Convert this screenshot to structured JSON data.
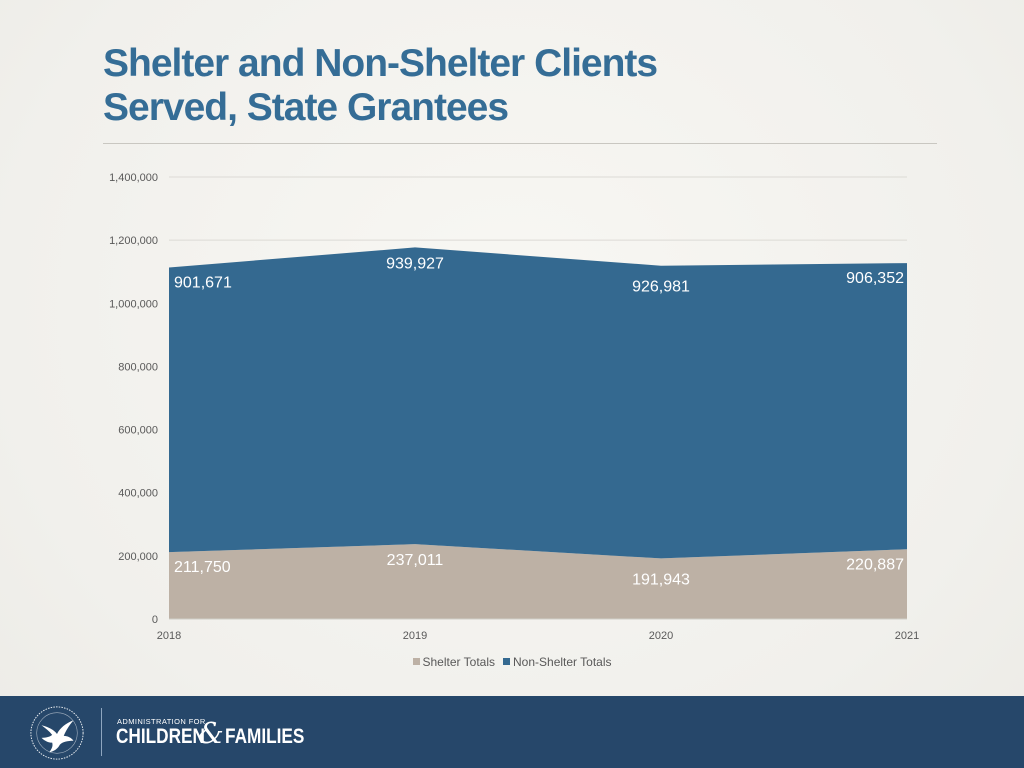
{
  "slide": {
    "title_line1": "Shelter and Non-Shelter Clients",
    "title_line2": "Served, State Grantees"
  },
  "chart_data": {
    "type": "area",
    "stacked": true,
    "title": "",
    "xlabel": "",
    "ylabel": "",
    "categories": [
      "2018",
      "2019",
      "2020",
      "2021"
    ],
    "series": [
      {
        "name": "Shelter Totals",
        "values": [
          211750,
          237011,
          191943,
          220887
        ],
        "color": "#bdb1a5",
        "labels": [
          "211,750",
          "237,011",
          "191,943",
          "220,887"
        ]
      },
      {
        "name": "Non-Shelter Totals",
        "values": [
          901671,
          939927,
          926981,
          906352
        ],
        "color": "#346990",
        "labels": [
          "901,671",
          "939,927",
          "926,981",
          "906,352"
        ]
      }
    ],
    "ylim": [
      0,
      1400000
    ],
    "yticks": [
      0,
      200000,
      400000,
      600000,
      800000,
      1000000,
      1200000,
      1400000
    ],
    "ytick_labels": [
      "0",
      "200,000",
      "400,000",
      "600,000",
      "800,000",
      "1,000,000",
      "1,200,000",
      "1,400,000"
    ],
    "grid": true,
    "legend_position": "bottom"
  },
  "footer": {
    "logo_small": "ADMINISTRATION FOR",
    "logo_word1": "CHILDREN",
    "logo_amp": "&",
    "logo_word2": "FAMILIES",
    "background": "#26476a",
    "seal": "hhs-eagle-seal"
  }
}
